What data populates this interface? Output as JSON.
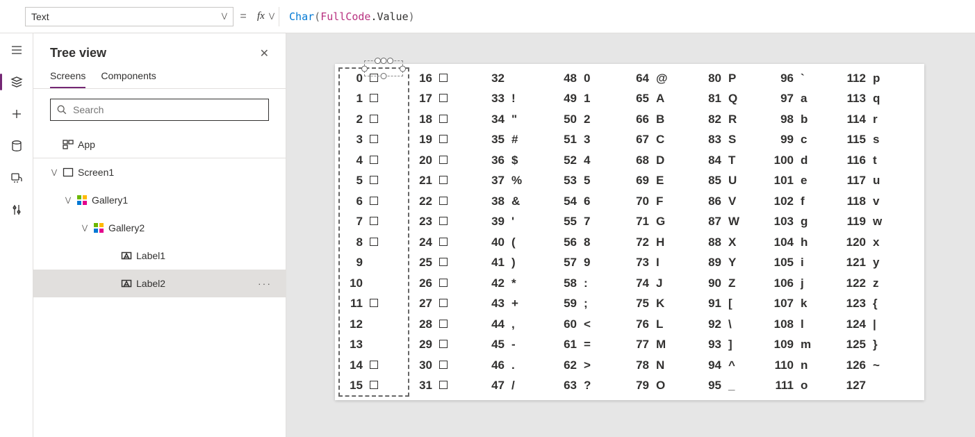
{
  "formula_bar": {
    "property": "Text",
    "fx_label": "fx",
    "eq": "=",
    "formula_tokens": {
      "fn": "Char",
      "lp": "( ",
      "id": "FullCode",
      "dot": ".Value ",
      "rp": ")"
    }
  },
  "tree": {
    "title": "Tree view",
    "tabs": {
      "screens": "Screens",
      "components": "Components"
    },
    "search_placeholder": "Search",
    "app": "App",
    "items": [
      {
        "label": "Screen1",
        "type": "screen",
        "indent": 1,
        "expanded": true
      },
      {
        "label": "Gallery1",
        "type": "gallery",
        "indent": 2,
        "expanded": true
      },
      {
        "label": "Gallery2",
        "type": "gallery",
        "indent": 3,
        "expanded": true
      },
      {
        "label": "Label1",
        "type": "label",
        "indent": 4,
        "expanded": null
      },
      {
        "label": "Label2",
        "type": "label",
        "indent": 4,
        "expanded": null,
        "selected": true
      }
    ]
  },
  "ascii": {
    "font_size": 17,
    "rows_per_col": 16,
    "cols": 8,
    "start_code": 0,
    "null_glyph_codes": [
      0,
      1,
      2,
      3,
      4,
      5,
      6,
      7,
      8,
      11,
      14,
      15,
      16,
      17,
      18,
      19,
      20,
      21,
      22,
      23,
      24,
      25,
      26,
      27,
      28,
      29,
      30,
      31
    ],
    "chars": {
      "32": " ",
      "33": "!",
      "34": "\"",
      "35": "#",
      "36": "$",
      "37": "%",
      "38": "&",
      "39": "'",
      "40": "(",
      "41": ")",
      "42": "*",
      "43": "+",
      "44": ",",
      "45": "-",
      "46": ".",
      "47": "/",
      "48": "0",
      "49": "1",
      "50": "2",
      "51": "3",
      "52": "4",
      "53": "5",
      "54": "6",
      "55": "7",
      "56": "8",
      "57": "9",
      "58": ":",
      "59": ";",
      "60": "<",
      "61": "=",
      "62": ">",
      "63": "?",
      "64": "@",
      "65": "A",
      "66": "B",
      "67": "C",
      "68": "D",
      "69": "E",
      "70": "F",
      "71": "G",
      "72": "H",
      "73": "I",
      "74": "J",
      "75": "K",
      "76": "L",
      "77": "M",
      "78": "N",
      "79": "O",
      "80": "P",
      "81": "Q",
      "82": "R",
      "83": "S",
      "84": "T",
      "85": "U",
      "86": "V",
      "87": "W",
      "88": "X",
      "89": "Y",
      "90": "Z",
      "91": "[",
      "92": "\\",
      "93": "]",
      "94": "^",
      "95": "_",
      "96": "`",
      "97": "a",
      "98": "b",
      "99": "c",
      "100": "d",
      "101": "e",
      "102": "f",
      "103": "g",
      "104": "h",
      "105": "i",
      "106": "j",
      "107": "k",
      "108": "l",
      "109": "m",
      "110": "n",
      "111": "o",
      "112": "p",
      "113": "q",
      "114": "r",
      "115": "s",
      "116": "t",
      "117": "u",
      "118": "v",
      "119": "w",
      "120": "x",
      "121": "y",
      "122": "z",
      "123": "{",
      "124": "|",
      "125": "}",
      "126": "~",
      "127": ""
    }
  },
  "colors": {
    "accent": "#742774",
    "fn": "#0078d4",
    "id": "#b83280",
    "border": "#e1dfdd",
    "canvas_bg": "#e6e6e6"
  }
}
